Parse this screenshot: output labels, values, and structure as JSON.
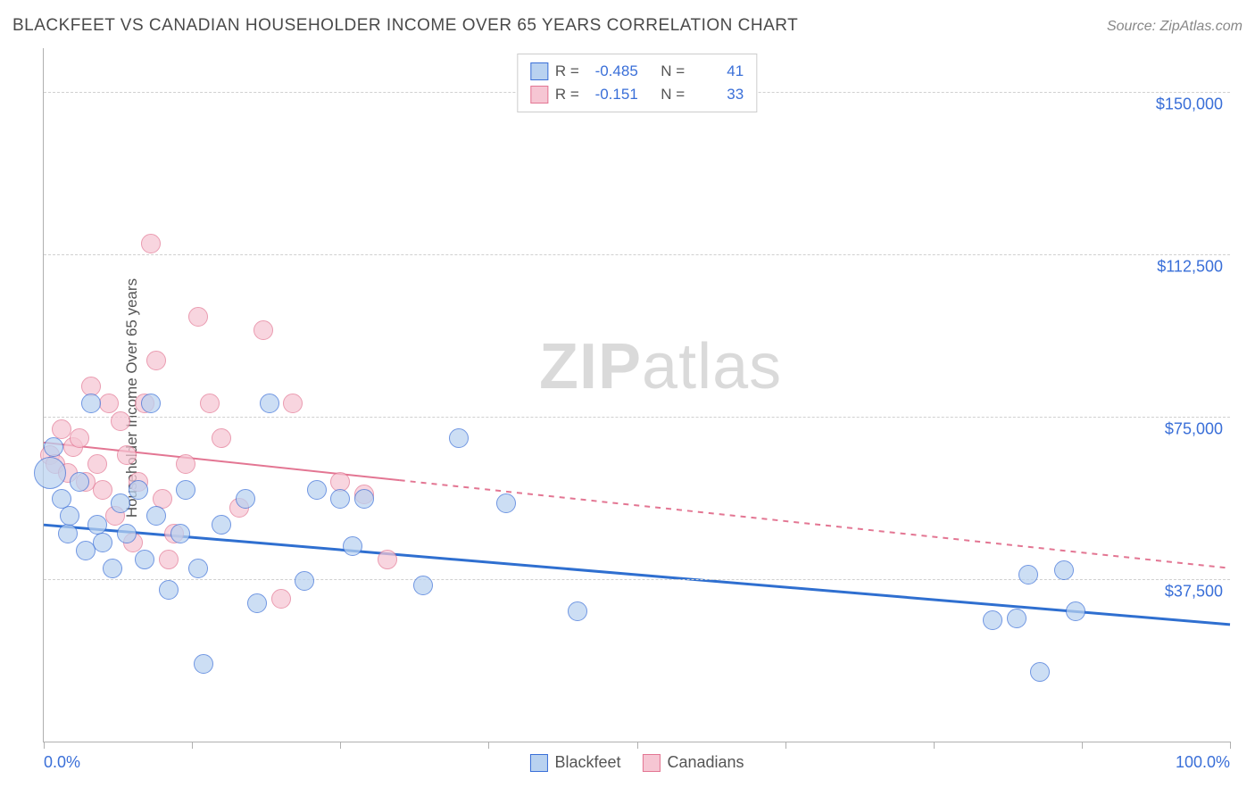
{
  "header": {
    "title": "BLACKFEET VS CANADIAN HOUSEHOLDER INCOME OVER 65 YEARS CORRELATION CHART",
    "source": "Source: ZipAtlas.com"
  },
  "chart": {
    "type": "scatter",
    "ylabel": "Householder Income Over 65 years",
    "xlim": [
      0,
      100
    ],
    "ylim": [
      0,
      160000
    ],
    "background_color": "#ffffff",
    "grid_color": "#d0d0d0",
    "grid_style": "dashed",
    "axis_color": "#b0b0b0",
    "yticks": [
      {
        "value": 37500,
        "label": "$37,500"
      },
      {
        "value": 75000,
        "label": "$75,000"
      },
      {
        "value": 112500,
        "label": "$112,500"
      },
      {
        "value": 150000,
        "label": "$150,000"
      }
    ],
    "xtick_positions": [
      0,
      12.5,
      25,
      37.5,
      50,
      62.5,
      75,
      87.5,
      100
    ],
    "xtick_labels": {
      "start": "0.0%",
      "end": "100.0%"
    },
    "tick_label_color": "#3a6fd8",
    "tick_label_fontsize": 18,
    "label_fontsize": 17,
    "marker_radius": 11,
    "marker_border_width": 1.5,
    "watermark": {
      "text_bold": "ZIP",
      "text_light": "atlas",
      "opacity": 0.14,
      "fontsize": 72
    }
  },
  "legend_top": {
    "rows": [
      {
        "swatch_fill": "#b9d2f0",
        "swatch_border": "#3a6fd8",
        "r_label": "R =",
        "r_value": "-0.485",
        "n_label": "N =",
        "n_value": "41"
      },
      {
        "swatch_fill": "#f6c6d3",
        "swatch_border": "#e37693",
        "r_label": "R =",
        "r_value": "-0.151",
        "n_label": "N =",
        "n_value": "33"
      }
    ]
  },
  "legend_bottom": {
    "items": [
      {
        "swatch_fill": "#b9d2f0",
        "swatch_border": "#3a6fd8",
        "label": "Blackfeet"
      },
      {
        "swatch_fill": "#f6c6d3",
        "swatch_border": "#e37693",
        "label": "Canadians"
      }
    ]
  },
  "series": {
    "blackfeet": {
      "fill": "#b9d2f0",
      "fill_opacity": 0.72,
      "border": "#3a6fd8",
      "trend": {
        "color": "#2f6fd0",
        "width": 3,
        "y_at_x0": 50000,
        "y_at_x100": 27000,
        "solid_until_x": 100
      },
      "points": [
        {
          "x": 0.5,
          "y": 62000,
          "r": 18
        },
        {
          "x": 0.8,
          "y": 68000
        },
        {
          "x": 1.5,
          "y": 56000
        },
        {
          "x": 2.0,
          "y": 48000
        },
        {
          "x": 2.2,
          "y": 52000
        },
        {
          "x": 3.0,
          "y": 60000
        },
        {
          "x": 3.5,
          "y": 44000
        },
        {
          "x": 4.0,
          "y": 78000
        },
        {
          "x": 4.5,
          "y": 50000
        },
        {
          "x": 5.0,
          "y": 46000
        },
        {
          "x": 5.8,
          "y": 40000
        },
        {
          "x": 6.5,
          "y": 55000
        },
        {
          "x": 7.0,
          "y": 48000
        },
        {
          "x": 8.0,
          "y": 58000
        },
        {
          "x": 8.5,
          "y": 42000
        },
        {
          "x": 9.0,
          "y": 78000
        },
        {
          "x": 9.5,
          "y": 52000
        },
        {
          "x": 10.5,
          "y": 35000
        },
        {
          "x": 11.5,
          "y": 48000
        },
        {
          "x": 12.0,
          "y": 58000
        },
        {
          "x": 13.0,
          "y": 40000
        },
        {
          "x": 13.5,
          "y": 18000
        },
        {
          "x": 15.0,
          "y": 50000
        },
        {
          "x": 17.0,
          "y": 56000
        },
        {
          "x": 18.0,
          "y": 32000
        },
        {
          "x": 19.0,
          "y": 78000
        },
        {
          "x": 22.0,
          "y": 37000
        },
        {
          "x": 23.0,
          "y": 58000
        },
        {
          "x": 25.0,
          "y": 56000
        },
        {
          "x": 26.0,
          "y": 45000
        },
        {
          "x": 27.0,
          "y": 56000
        },
        {
          "x": 32.0,
          "y": 36000
        },
        {
          "x": 35.0,
          "y": 70000
        },
        {
          "x": 39.0,
          "y": 55000
        },
        {
          "x": 45.0,
          "y": 30000
        },
        {
          "x": 83.0,
          "y": 38500
        },
        {
          "x": 86.0,
          "y": 39500
        },
        {
          "x": 80.0,
          "y": 28000
        },
        {
          "x": 82.0,
          "y": 28500
        },
        {
          "x": 84.0,
          "y": 16000
        },
        {
          "x": 87.0,
          "y": 30000
        }
      ]
    },
    "canadians": {
      "fill": "#f6c6d3",
      "fill_opacity": 0.72,
      "border": "#e37693",
      "trend": {
        "color": "#e37693",
        "width": 2,
        "y_at_x0": 69000,
        "y_at_x100": 40000,
        "solid_until_x": 30
      },
      "points": [
        {
          "x": 0.5,
          "y": 66000
        },
        {
          "x": 1.0,
          "y": 64000
        },
        {
          "x": 1.5,
          "y": 72000
        },
        {
          "x": 2.0,
          "y": 62000
        },
        {
          "x": 2.5,
          "y": 68000
        },
        {
          "x": 3.0,
          "y": 70000
        },
        {
          "x": 3.5,
          "y": 60000
        },
        {
          "x": 4.0,
          "y": 82000
        },
        {
          "x": 4.5,
          "y": 64000
        },
        {
          "x": 5.0,
          "y": 58000
        },
        {
          "x": 5.5,
          "y": 78000
        },
        {
          "x": 6.0,
          "y": 52000
        },
        {
          "x": 6.5,
          "y": 74000
        },
        {
          "x": 7.0,
          "y": 66000
        },
        {
          "x": 7.5,
          "y": 46000
        },
        {
          "x": 8.0,
          "y": 60000
        },
        {
          "x": 8.5,
          "y": 78000
        },
        {
          "x": 9.0,
          "y": 115000
        },
        {
          "x": 9.5,
          "y": 88000
        },
        {
          "x": 10.0,
          "y": 56000
        },
        {
          "x": 10.5,
          "y": 42000
        },
        {
          "x": 11.0,
          "y": 48000
        },
        {
          "x": 12.0,
          "y": 64000
        },
        {
          "x": 13.0,
          "y": 98000
        },
        {
          "x": 14.0,
          "y": 78000
        },
        {
          "x": 15.0,
          "y": 70000
        },
        {
          "x": 16.5,
          "y": 54000
        },
        {
          "x": 18.5,
          "y": 95000
        },
        {
          "x": 20.0,
          "y": 33000
        },
        {
          "x": 21.0,
          "y": 78000
        },
        {
          "x": 25.0,
          "y": 60000
        },
        {
          "x": 27.0,
          "y": 57000
        },
        {
          "x": 29.0,
          "y": 42000
        }
      ]
    }
  }
}
